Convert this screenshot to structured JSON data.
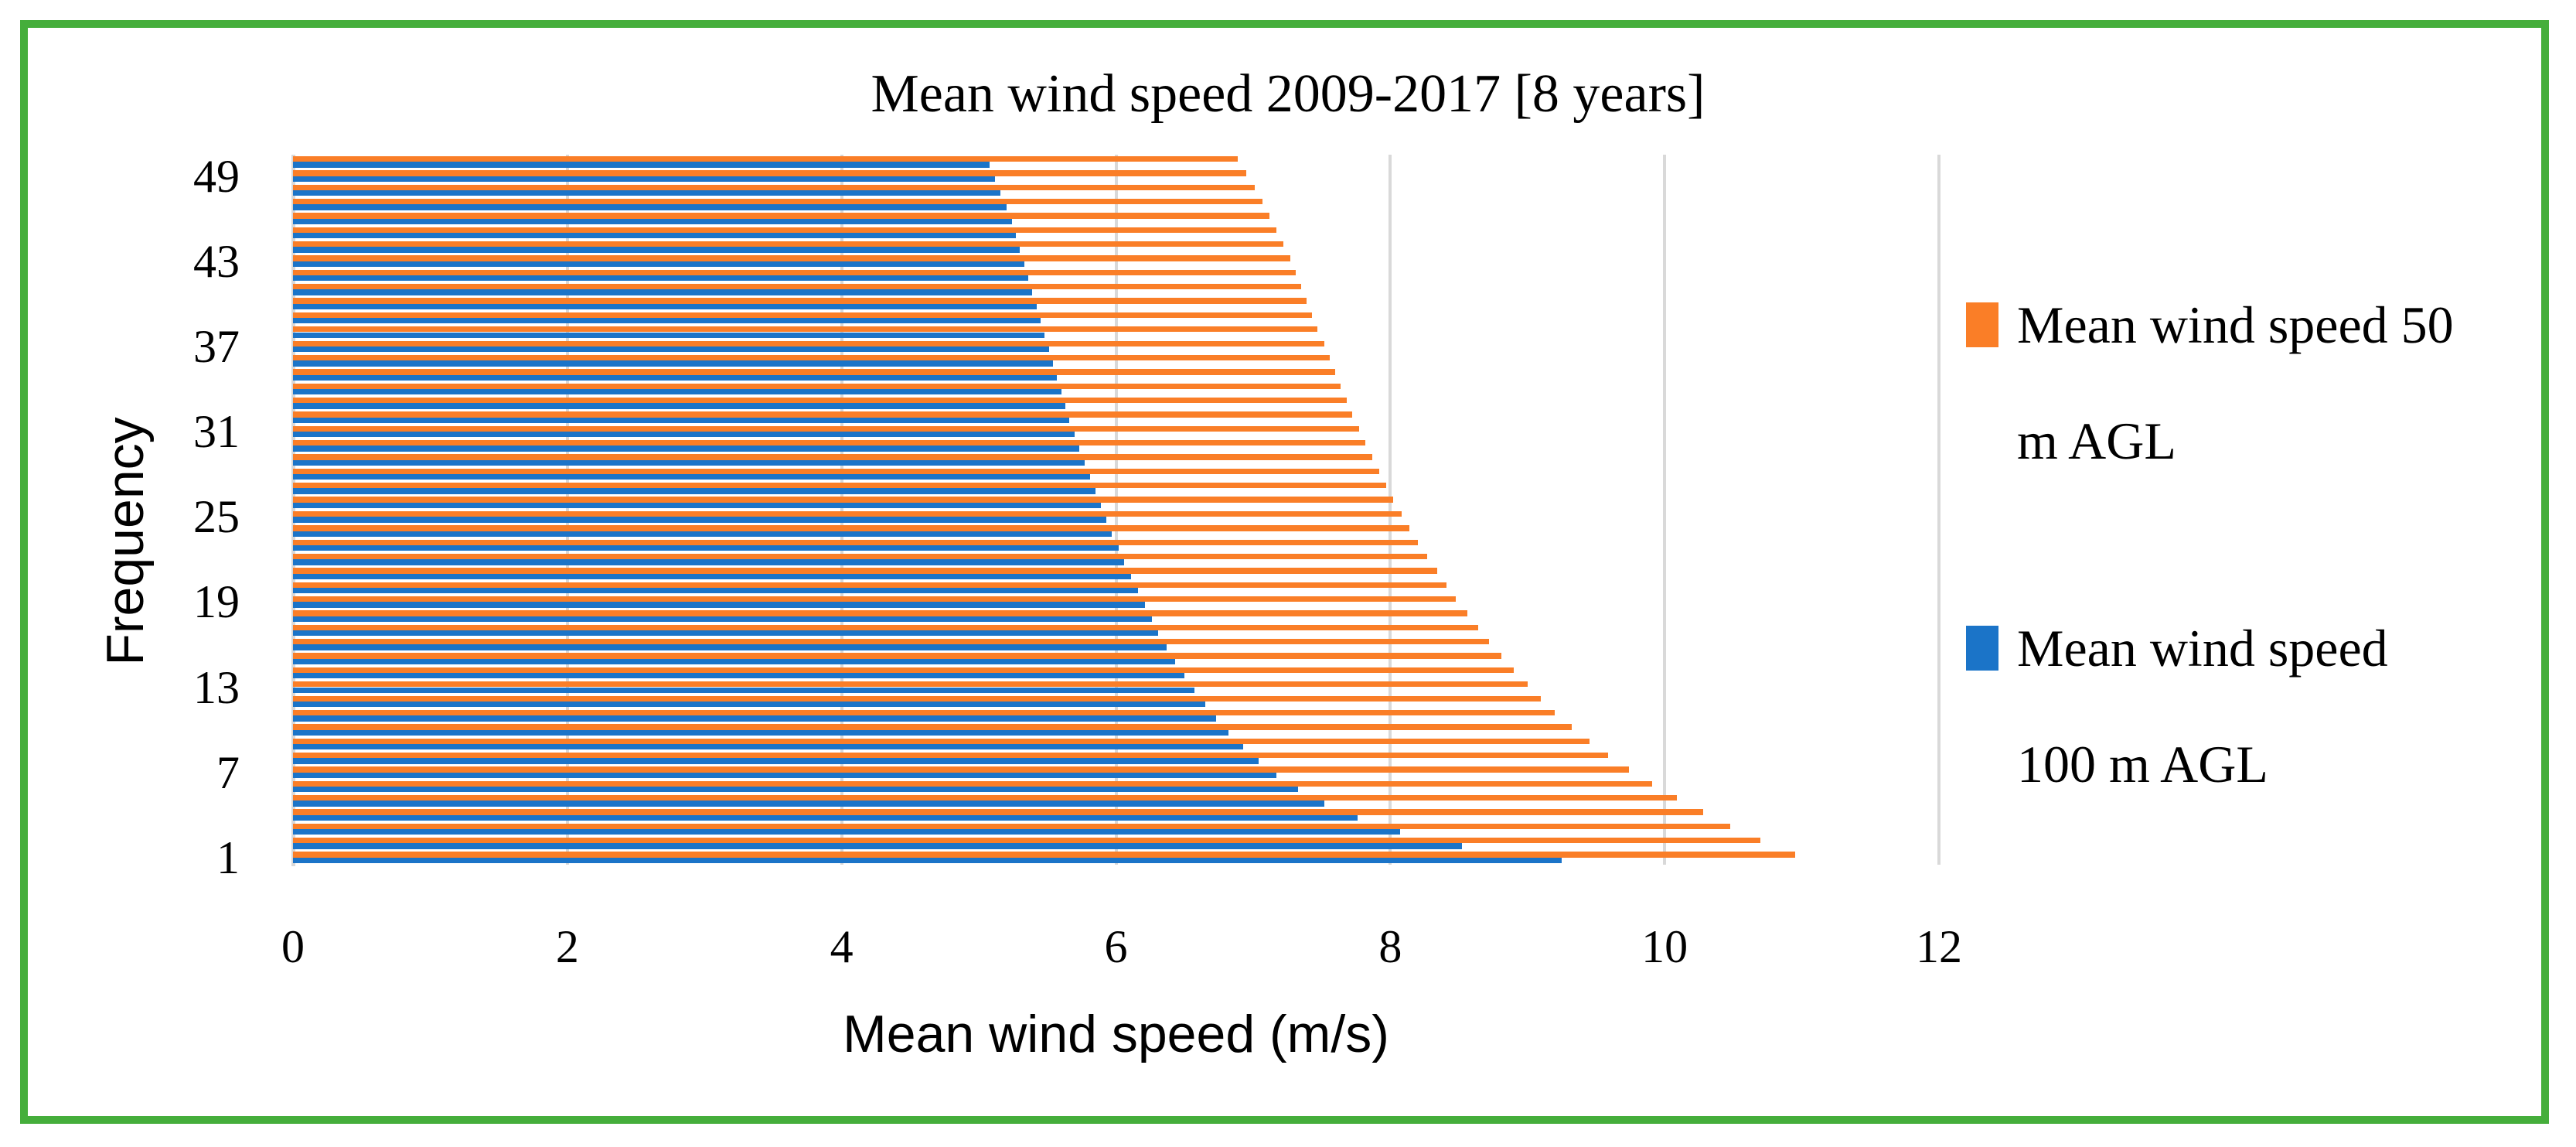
{
  "figure": {
    "border_color": "#45AE3B",
    "background_color": "#FFFFFF",
    "gridline_color": "#D9D9D9"
  },
  "chart_data": {
    "type": "bar",
    "orientation": "horizontal",
    "title": "Mean wind speed 2009-2017 [8 years]",
    "xlabel": "Mean wind speed (m/s)",
    "ylabel": "Frequency",
    "xlim": [
      0,
      12
    ],
    "x_ticks": [
      0,
      2,
      4,
      6,
      8,
      10,
      12
    ],
    "y_ticks": [
      49,
      43,
      37,
      31,
      25,
      19,
      13,
      7,
      1
    ],
    "grid": "vertical-gridlines-only",
    "legend_position": "right",
    "categories": [
      1,
      2,
      3,
      4,
      5,
      6,
      7,
      8,
      9,
      10,
      11,
      12,
      13,
      14,
      15,
      16,
      17,
      18,
      19,
      20,
      21,
      22,
      23,
      24,
      25,
      26,
      27,
      28,
      29,
      30,
      31,
      32,
      33,
      34,
      35,
      36,
      37,
      38,
      39,
      40,
      41,
      42,
      43,
      44,
      45,
      46,
      47,
      48,
      49,
      50
    ],
    "category_axis_note": "category 1 at bottom, category 50 at top",
    "series": [
      {
        "name": "Mean wind speed 50 m AGL",
        "legend_lines": [
          "Mean wind speed 50",
          "m AGL"
        ],
        "color": "#FA7E27",
        "values": [
          10.95,
          10.7,
          10.48,
          10.28,
          10.09,
          9.91,
          9.74,
          9.59,
          9.45,
          9.32,
          9.2,
          9.1,
          9.0,
          8.9,
          8.81,
          8.72,
          8.64,
          8.56,
          8.48,
          8.41,
          8.34,
          8.27,
          8.2,
          8.14,
          8.08,
          8.02,
          7.97,
          7.92,
          7.87,
          7.82,
          7.77,
          7.72,
          7.68,
          7.64,
          7.6,
          7.56,
          7.52,
          7.47,
          7.43,
          7.39,
          7.35,
          7.31,
          7.27,
          7.22,
          7.17,
          7.12,
          7.07,
          7.01,
          6.95,
          6.89
        ]
      },
      {
        "name": "Mean wind speed 100 m AGL",
        "legend_lines": [
          "Mean wind speed",
          "100 m AGL"
        ],
        "color": "#1B74C8",
        "values": [
          9.25,
          8.52,
          8.07,
          7.76,
          7.52,
          7.33,
          7.17,
          7.04,
          6.93,
          6.82,
          6.73,
          6.65,
          6.57,
          6.5,
          6.43,
          6.37,
          6.31,
          6.26,
          6.21,
          6.16,
          6.11,
          6.06,
          6.02,
          5.97,
          5.93,
          5.89,
          5.85,
          5.81,
          5.77,
          5.73,
          5.7,
          5.66,
          5.63,
          5.6,
          5.57,
          5.54,
          5.51,
          5.48,
          5.45,
          5.42,
          5.39,
          5.36,
          5.33,
          5.3,
          5.27,
          5.24,
          5.2,
          5.16,
          5.12,
          5.08
        ]
      }
    ]
  }
}
